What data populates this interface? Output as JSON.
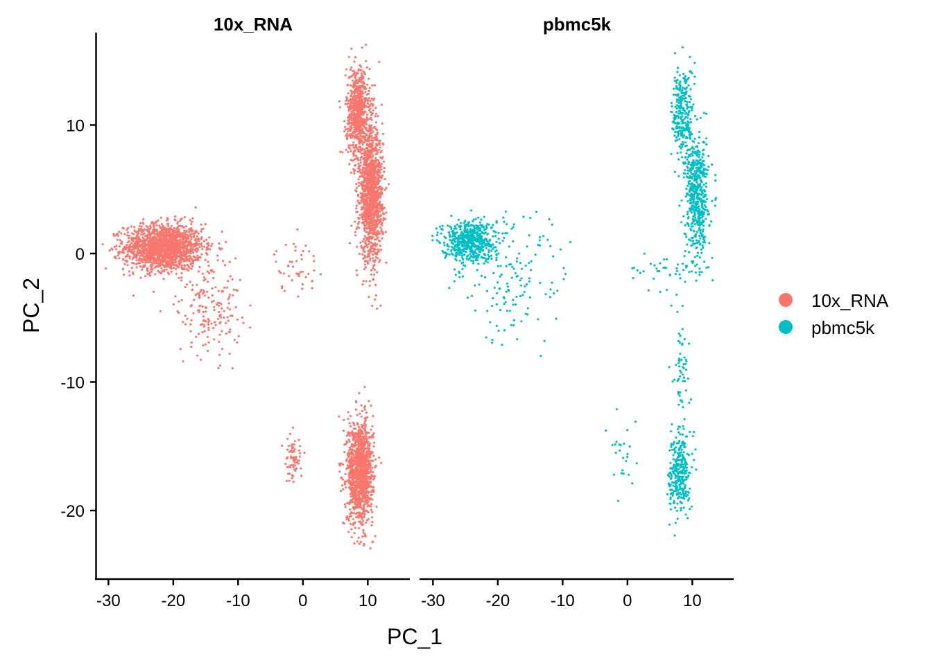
{
  "chart_data": {
    "type": "scatter",
    "xlabel": "PC_1",
    "ylabel": "PC_2",
    "facets": [
      "10x_RNA",
      "pbmc5k"
    ],
    "xlim": [
      -31,
      16
    ],
    "ylim": [
      -25,
      17
    ],
    "x_ticks": [
      -30,
      -20,
      -10,
      0,
      10
    ],
    "y_ticks": [
      10,
      0,
      -10,
      -20
    ],
    "grid": false,
    "legend_position": "right",
    "series": [
      {
        "name": "10x_RNA",
        "facet": "10x_RNA",
        "color": "#F8766D",
        "clusters": [
          {
            "cx": -21.5,
            "cy": 0.5,
            "sx": 3.0,
            "sy": 0.9,
            "n": 1600
          },
          {
            "cx": -14.5,
            "cy": -4.0,
            "sx": 2.5,
            "sy": 2.0,
            "n": 180
          },
          {
            "cx": -1.0,
            "cy": -1.0,
            "sx": 1.7,
            "sy": 1.0,
            "n": 45
          },
          {
            "cx": 8.5,
            "cy": 11.0,
            "sx": 0.9,
            "sy": 1.8,
            "n": 700
          },
          {
            "cx": 10.5,
            "cy": 4.5,
            "sx": 0.9,
            "sy": 2.5,
            "n": 1300
          },
          {
            "cx": 8.8,
            "cy": -17.0,
            "sx": 1.0,
            "sy": 2.0,
            "n": 1200
          },
          {
            "cx": -1.5,
            "cy": -15.8,
            "sx": 0.7,
            "sy": 1.0,
            "n": 70
          }
        ]
      },
      {
        "name": "pbmc5k",
        "facet": "pbmc5k",
        "color": "#00BFC4",
        "clusters": [
          {
            "cx": -24.5,
            "cy": 1.0,
            "sx": 2.0,
            "sy": 0.8,
            "n": 550
          },
          {
            "cx": -18.0,
            "cy": -2.0,
            "sx": 4.5,
            "sy": 2.6,
            "n": 150
          },
          {
            "cx": 6.0,
            "cy": -1.3,
            "sx": 3.0,
            "sy": 0.8,
            "n": 45
          },
          {
            "cx": 8.5,
            "cy": 11.0,
            "sx": 0.8,
            "sy": 1.8,
            "n": 260
          },
          {
            "cx": 10.7,
            "cy": 4.5,
            "sx": 0.9,
            "sy": 2.3,
            "n": 550
          },
          {
            "cx": 8.0,
            "cy": -17.0,
            "sx": 0.8,
            "sy": 1.6,
            "n": 300
          },
          {
            "cx": 8.4,
            "cy": -9.0,
            "sx": 0.6,
            "sy": 2.6,
            "n": 60
          },
          {
            "cx": -0.5,
            "cy": -15.0,
            "sx": 1.0,
            "sy": 1.3,
            "n": 25
          }
        ]
      }
    ]
  }
}
